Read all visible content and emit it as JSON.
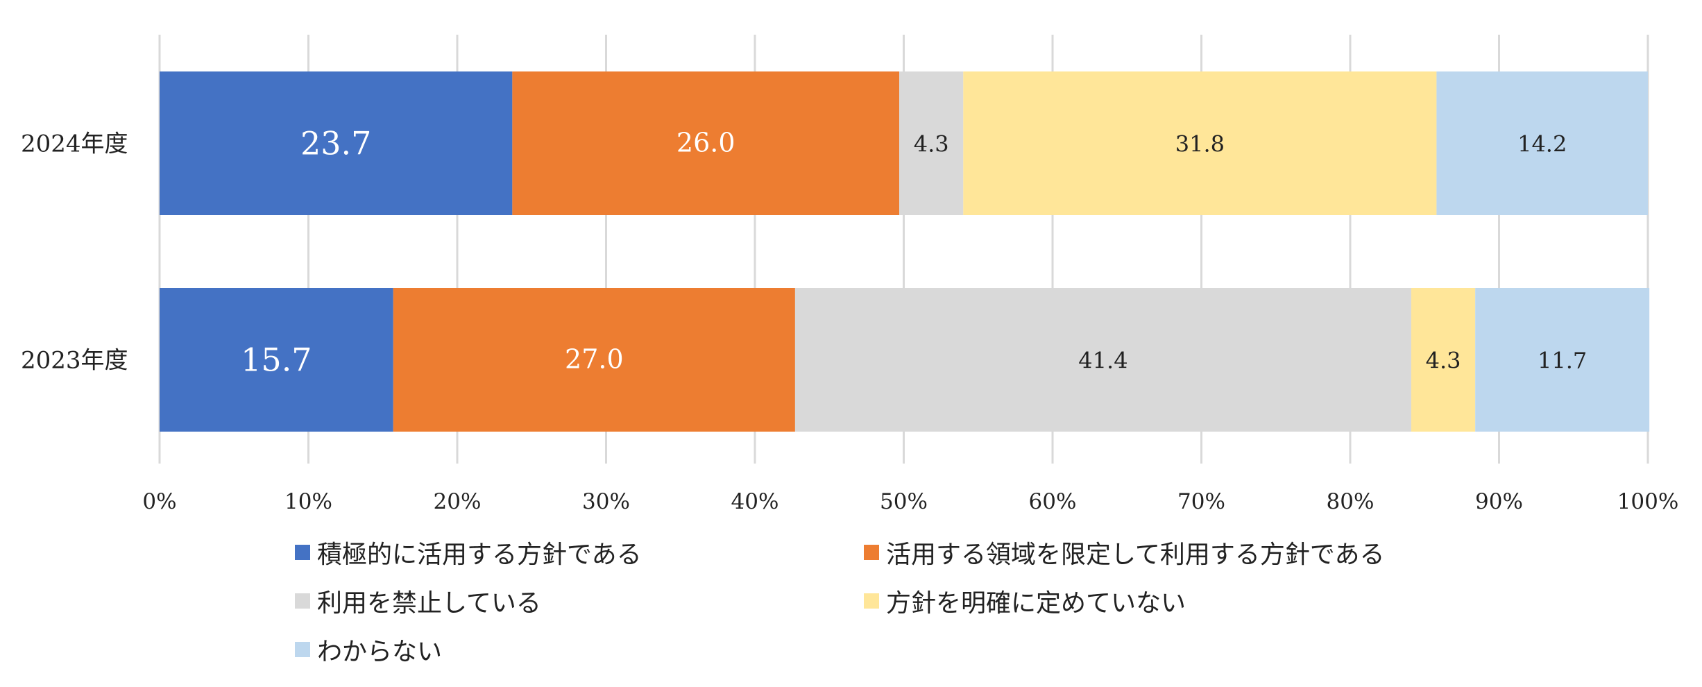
{
  "chart_data": {
    "type": "bar",
    "orientation": "horizontal",
    "stacked": true,
    "percent_stacked": true,
    "categories": [
      "2024年度",
      "2023年度"
    ],
    "series": [
      {
        "name": "積極的に活用する方針である",
        "color": "#4472C4",
        "values": [
          23.7,
          15.7
        ],
        "labels": [
          "23.7",
          "15.7"
        ]
      },
      {
        "name": "活用する領域を限定して利用する方針である",
        "color": "#ED7D31",
        "values": [
          26.0,
          27.0
        ],
        "labels": [
          "26.0",
          "27.0"
        ]
      },
      {
        "name": "利用を禁止している",
        "color": "#D9D9D9",
        "values": [
          4.3,
          41.4
        ],
        "labels": [
          "4.3",
          "41.4"
        ]
      },
      {
        "name": "方針を明確に定めていない",
        "color": "#FFE699",
        "values": [
          31.8,
          4.3
        ],
        "labels": [
          "31.8",
          "4.3"
        ]
      },
      {
        "name": "わからない",
        "color": "#BDD7EE",
        "values": [
          14.2,
          11.7
        ],
        "labels": [
          "14.2",
          "11.7"
        ]
      }
    ],
    "x_ticks": [
      "0%",
      "10%",
      "20%",
      "30%",
      "40%",
      "50%",
      "60%",
      "70%",
      "80%",
      "90%",
      "100%"
    ],
    "xlim": [
      0,
      100
    ],
    "grid": true,
    "legend_position": "bottom"
  }
}
